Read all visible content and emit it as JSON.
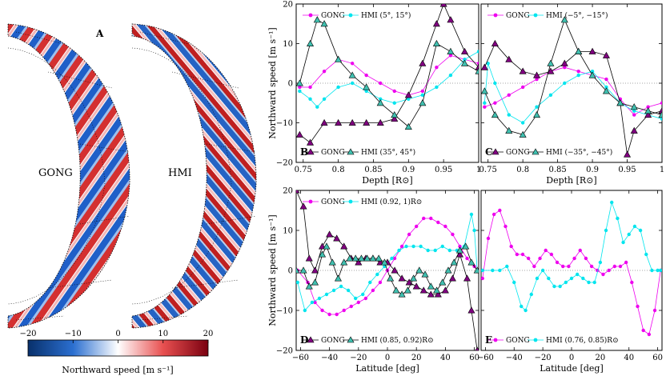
{
  "maps": {
    "panel_label": "A",
    "gong_label": "GONG",
    "hmi_label": "HMI",
    "colorbar": {
      "label": "Northward speed [m s⁻¹]",
      "ticks": [
        "−20",
        "−10",
        "0",
        "10",
        "20"
      ],
      "range": [
        -20,
        20
      ],
      "colors": {
        "neg": "#0a3fa8",
        "zero": "#ffffff",
        "pos": "#b0001a"
      }
    }
  },
  "chart_data": [
    {
      "type": "line",
      "panel": "B",
      "xlabel": "Depth [R⊙]",
      "ylabel": "Northward speed [m s⁻¹]",
      "xlim": [
        0.74,
        1.0
      ],
      "ylim": [
        -20,
        20
      ],
      "xticks": [
        "0.75",
        "0.8",
        "0.85",
        "0.9",
        "0.95",
        "1"
      ],
      "yticks": [
        "−20",
        "−10",
        "0",
        "10",
        "20"
      ],
      "legend_top": [
        "GONG",
        "HMI (5°, 15°)"
      ],
      "legend_bottom": [
        "GONG",
        "HMI (35°, 45°)"
      ],
      "series": [
        {
          "name": "GONG (5°, 15°)",
          "color": "#ee00ee",
          "marker": "circle",
          "x": [
            0.745,
            0.76,
            0.78,
            0.8,
            0.82,
            0.84,
            0.86,
            0.88,
            0.9,
            0.92,
            0.94,
            0.96,
            0.98,
            1.0
          ],
          "y": [
            -1,
            -1,
            3,
            6,
            5,
            2,
            0,
            -2,
            -3,
            -2,
            4,
            7,
            6,
            5
          ]
        },
        {
          "name": "HMI (5°, 15°)",
          "color": "#00e5ee",
          "marker": "circle",
          "x": [
            0.745,
            0.76,
            0.77,
            0.78,
            0.8,
            0.82,
            0.84,
            0.86,
            0.88,
            0.9,
            0.92,
            0.94,
            0.96,
            0.98,
            1.0
          ],
          "y": [
            -2,
            -4,
            -6,
            -4,
            -1,
            0,
            -2,
            -4,
            -5,
            -4,
            -3,
            -1,
            2,
            6,
            8
          ]
        },
        {
          "name": "GONG (35°, 45°)",
          "color": "#800080",
          "marker": "triangle",
          "x": [
            0.745,
            0.76,
            0.78,
            0.8,
            0.82,
            0.84,
            0.86,
            0.88,
            0.9,
            0.92,
            0.94,
            0.95,
            0.96,
            0.98,
            1.0
          ],
          "y": [
            -13,
            -15,
            -10,
            -10,
            -10,
            -10,
            -10,
            -9,
            -3,
            5,
            15,
            20,
            16,
            8,
            4
          ]
        },
        {
          "name": "HMI (35°, 45°)",
          "color": "#008b8b",
          "fill": "#40c0b0",
          "marker": "triangle",
          "x": [
            0.745,
            0.76,
            0.77,
            0.78,
            0.8,
            0.82,
            0.84,
            0.86,
            0.88,
            0.9,
            0.92,
            0.94,
            0.96,
            0.98,
            1.0
          ],
          "y": [
            0,
            10,
            16,
            15,
            6,
            2,
            -1,
            -5,
            -8,
            -11,
            -5,
            10,
            8,
            5,
            3
          ]
        }
      ]
    },
    {
      "type": "line",
      "panel": "C",
      "xlabel": "Depth [R⊙]",
      "xlim": [
        0.74,
        1.0
      ],
      "ylim": [
        -20,
        20
      ],
      "xticks": [
        "0.75",
        "0.8",
        "0.85",
        "0.9",
        "0.95",
        "1"
      ],
      "legend_top": [
        "GONG",
        "HMI (−5°, −15°)"
      ],
      "legend_bottom": [
        "GONG",
        "HMI (−35°, −45°)"
      ],
      "series": [
        {
          "name": "GONG (−5°, −15°)",
          "color": "#ee00ee",
          "marker": "circle",
          "x": [
            0.745,
            0.76,
            0.78,
            0.8,
            0.82,
            0.84,
            0.86,
            0.88,
            0.9,
            0.92,
            0.94,
            0.96,
            0.98,
            1.0
          ],
          "y": [
            -6,
            -5,
            -3,
            -1,
            1,
            3,
            4,
            3,
            2,
            1,
            -4,
            -8,
            -6,
            -5
          ]
        },
        {
          "name": "HMI (−5°, −15°)",
          "color": "#00e5ee",
          "marker": "circle",
          "x": [
            0.745,
            0.75,
            0.76,
            0.78,
            0.8,
            0.82,
            0.84,
            0.86,
            0.88,
            0.9,
            0.92,
            0.94,
            0.96,
            0.98,
            1.0
          ],
          "y": [
            -5,
            5,
            0,
            -8,
            -10,
            -6,
            -3,
            0,
            2,
            3,
            -1,
            -5,
            -7,
            -8,
            -9
          ]
        },
        {
          "name": "GONG (−35°, −45°)",
          "color": "#800080",
          "marker": "triangle",
          "x": [
            0.745,
            0.76,
            0.78,
            0.8,
            0.82,
            0.84,
            0.86,
            0.88,
            0.9,
            0.92,
            0.94,
            0.95,
            0.96,
            0.98,
            1.0
          ],
          "y": [
            4,
            10,
            6,
            3,
            2,
            3,
            5,
            8,
            8,
            7,
            -5,
            -18,
            -12,
            -8,
            -7
          ]
        },
        {
          "name": "HMI (−35°, −45°)",
          "color": "#008b8b",
          "fill": "#40c0b0",
          "marker": "triangle",
          "x": [
            0.745,
            0.76,
            0.78,
            0.8,
            0.82,
            0.84,
            0.86,
            0.88,
            0.9,
            0.92,
            0.94,
            0.96,
            0.98,
            1.0
          ],
          "y": [
            -2,
            -8,
            -12,
            -13,
            -8,
            5,
            16,
            8,
            2,
            -2,
            -5,
            -6,
            -7,
            -8
          ]
        }
      ]
    },
    {
      "type": "line",
      "panel": "D",
      "xlabel": "Latitude [deg]",
      "ylabel": "Northward speed [m s⁻¹]",
      "xlim": [
        -63,
        63
      ],
      "ylim": [
        -20,
        20
      ],
      "xticks": [
        "−60",
        "−40",
        "−20",
        "0",
        "20",
        "40",
        "60"
      ],
      "yticks": [
        "−20",
        "−10",
        "0",
        "10",
        "20"
      ],
      "legend_top": [
        "GONG",
        "HMI (0.92, 1)R⊙"
      ],
      "legend_bottom": [
        "GONG",
        "HMI (0.85, 0.92)R⊙"
      ],
      "series": [
        {
          "name": "GONG (0.92, 1)R⊙",
          "color": "#ee00ee",
          "marker": "circle",
          "x": [
            -62,
            -55,
            -50,
            -45,
            -40,
            -35,
            -30,
            -25,
            -20,
            -15,
            -10,
            -5,
            0,
            5,
            10,
            15,
            20,
            25,
            30,
            35,
            40,
            45,
            50,
            55,
            60,
            62
          ],
          "y": [
            0,
            -3,
            -8,
            -10,
            -11,
            -11,
            -10,
            -9,
            -8,
            -7,
            -5,
            -3,
            0,
            3,
            6,
            9,
            11,
            13,
            13,
            12,
            11,
            9,
            6,
            3,
            1,
            0
          ]
        },
        {
          "name": "HMI (0.92, 1)R⊙",
          "color": "#00e5ee",
          "marker": "circle",
          "x": [
            -62,
            -57,
            -52,
            -47,
            -42,
            -37,
            -32,
            -27,
            -22,
            -17,
            -12,
            -7,
            -2,
            3,
            8,
            13,
            18,
            23,
            28,
            33,
            38,
            43,
            48,
            53,
            58,
            60,
            62
          ],
          "y": [
            -3,
            -10,
            -8,
            -7,
            -6,
            -5,
            -4,
            -5,
            -7,
            -6,
            -3,
            -1,
            1,
            3,
            5,
            6,
            6,
            6,
            5,
            5,
            6,
            5,
            5,
            6,
            14,
            10,
            0
          ]
        },
        {
          "name": "GONG (0.85, 0.92)R⊙",
          "color": "#800080",
          "marker": "triangle",
          "x": [
            -63,
            -58,
            -54,
            -50,
            -45,
            -40,
            -35,
            -30,
            -25,
            -20,
            -15,
            -10,
            -5,
            0,
            5,
            10,
            15,
            20,
            25,
            30,
            35,
            40,
            45,
            50,
            55,
            58,
            62
          ],
          "y": [
            20,
            16,
            3,
            0,
            6,
            9,
            8,
            6,
            3,
            2,
            3,
            3,
            2,
            2,
            0,
            -2,
            -3,
            -4,
            -5,
            -6,
            -6,
            -5,
            -2,
            4,
            -2,
            -10,
            -20
          ]
        },
        {
          "name": "HMI (0.85, 0.92)R⊙",
          "color": "#008b8b",
          "fill": "#40c0b0",
          "marker": "triangle",
          "x": [
            -63,
            -58,
            -54,
            -50,
            -45,
            -42,
            -38,
            -34,
            -30,
            -26,
            -22,
            -18,
            -14,
            -10,
            -6,
            -2,
            2,
            6,
            10,
            14,
            18,
            22,
            26,
            30,
            34,
            38,
            42,
            46,
            50,
            54,
            58,
            62
          ],
          "y": [
            0,
            0,
            -4,
            -3,
            4,
            6,
            2,
            -2,
            2,
            3,
            3,
            3,
            3,
            3,
            3,
            2,
            -2,
            -5,
            -6,
            -5,
            -2,
            0,
            -1,
            -4,
            -5,
            -3,
            0,
            2,
            5,
            6,
            2,
            0
          ]
        }
      ]
    },
    {
      "type": "line",
      "panel": "E",
      "xlabel": "Latitude [deg]",
      "xlim": [
        -63,
        63
      ],
      "ylim": [
        -20,
        20
      ],
      "xticks": [
        "−60",
        "−40",
        "−20",
        "0",
        "20",
        "40",
        "60"
      ],
      "legend_bottom": [
        "GONG",
        "HMI (0.76, 0.85)R⊙"
      ],
      "series": [
        {
          "name": "GONG (0.76, 0.85)R⊙",
          "color": "#ee00ee",
          "marker": "circle",
          "x": [
            -62,
            -58,
            -54,
            -50,
            -46,
            -42,
            -38,
            -34,
            -30,
            -26,
            -22,
            -18,
            -14,
            -10,
            -6,
            -2,
            2,
            6,
            10,
            14,
            18,
            22,
            26,
            30,
            34,
            38,
            42,
            46,
            50,
            54,
            58,
            62
          ],
          "y": [
            -2,
            8,
            14,
            15,
            11,
            6,
            4,
            4,
            3,
            1,
            3,
            5,
            4,
            2,
            1,
            1,
            3,
            5,
            3,
            1,
            0,
            -1,
            0,
            1,
            1,
            2,
            -3,
            -9,
            -15,
            -16,
            -10,
            0
          ]
        },
        {
          "name": "HMI (0.76, 0.85)R⊙",
          "color": "#00e5ee",
          "marker": "circle",
          "x": [
            -62,
            -55,
            -50,
            -45,
            -40,
            -35,
            -32,
            -28,
            -24,
            -20,
            -16,
            -12,
            -8,
            -4,
            0,
            4,
            8,
            12,
            16,
            20,
            24,
            28,
            32,
            36,
            40,
            44,
            48,
            52,
            56,
            60,
            62
          ],
          "y": [
            0,
            0,
            0,
            1,
            -3,
            -9,
            -10,
            -6,
            -2,
            0,
            -2,
            -4,
            -4,
            -3,
            -2,
            -1,
            -2,
            -3,
            -3,
            2,
            10,
            17,
            13,
            7,
            9,
            11,
            10,
            4,
            0,
            0,
            0
          ]
        }
      ]
    }
  ]
}
